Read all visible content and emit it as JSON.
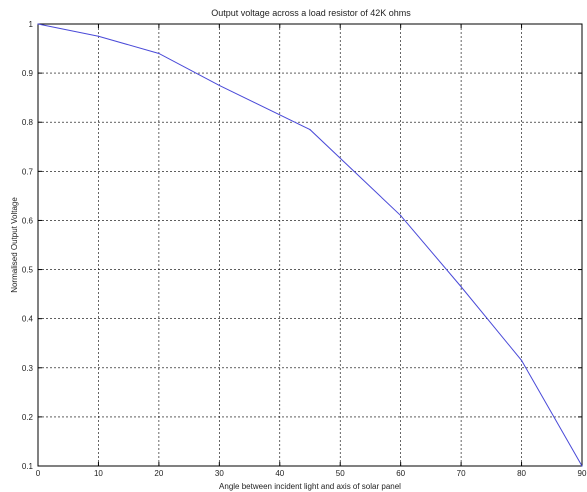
{
  "chart_data": {
    "type": "line",
    "title": "Output voltage across a load resistor of 42K ohms",
    "xlabel": "Angle between incident light and axis of solar panel",
    "ylabel": "Normalised Output Voltage",
    "xlim": [
      0,
      90
    ],
    "ylim": [
      0.1,
      1
    ],
    "x_ticks": [
      "0",
      "10",
      "20",
      "30",
      "40",
      "50",
      "60",
      "70",
      "80",
      "90"
    ],
    "y_ticks": [
      "0.1",
      "0.2",
      "0.3",
      "0.4",
      "0.5",
      "0.6",
      "0.7",
      "0.8",
      "0.9",
      "1"
    ],
    "grid": true,
    "series": [
      {
        "color": "#4a4ad8",
        "x": [
          0,
          10,
          20,
          30,
          45,
          60,
          70,
          80,
          90
        ],
        "y": [
          1.0,
          0.975,
          0.94,
          0.875,
          0.785,
          0.61,
          0.465,
          0.315,
          0.1
        ]
      }
    ]
  }
}
